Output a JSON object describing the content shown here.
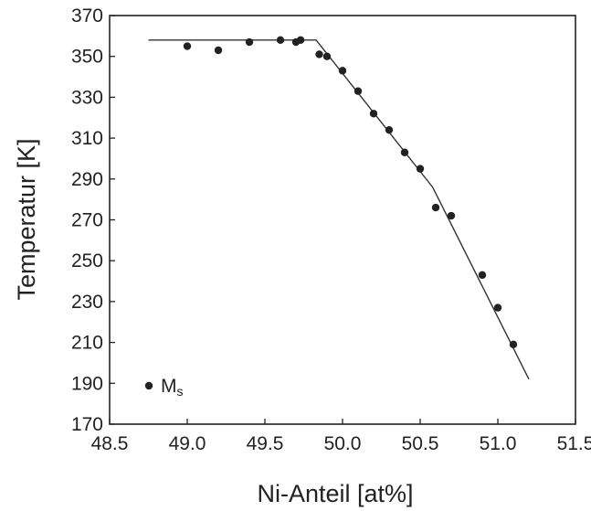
{
  "chart_data": {
    "type": "scatter",
    "title": "",
    "xlabel": "Ni-Anteil [at%]",
    "ylabel": "Temperatur [K]",
    "xlim": [
      48.5,
      51.5
    ],
    "ylim": [
      170,
      370
    ],
    "xticks": [
      48.5,
      49.0,
      49.5,
      50.0,
      50.5,
      51.0,
      51.5
    ],
    "xtick_labels": [
      "48.5",
      "49.0",
      "49.5",
      "50.0",
      "50.5",
      "51.0",
      "51.5"
    ],
    "yticks": [
      170,
      190,
      210,
      230,
      250,
      270,
      290,
      310,
      330,
      350,
      370
    ],
    "ytick_labels": [
      "170",
      "190",
      "210",
      "230",
      "250",
      "270",
      "290",
      "310",
      "330",
      "350",
      "370"
    ],
    "grid": false,
    "legend_position": "bottom-left",
    "series": [
      {
        "name": "Ms",
        "name_main": "M",
        "name_sub": "s",
        "kind": "scatter",
        "x": [
          49.0,
          49.2,
          49.4,
          49.6,
          49.7,
          49.73,
          49.85,
          49.9,
          50.0,
          50.1,
          50.2,
          50.3,
          50.4,
          50.5,
          50.6,
          50.7,
          50.9,
          51.0,
          51.1
        ],
        "y": [
          355,
          353,
          357,
          358,
          357,
          358,
          351,
          350,
          343,
          333,
          322,
          314,
          303,
          295,
          276,
          272,
          243,
          227,
          209
        ]
      },
      {
        "kind": "line",
        "x": [
          48.75,
          49.83,
          50.58,
          51.2
        ],
        "y": [
          358,
          358,
          286,
          192
        ]
      }
    ]
  }
}
